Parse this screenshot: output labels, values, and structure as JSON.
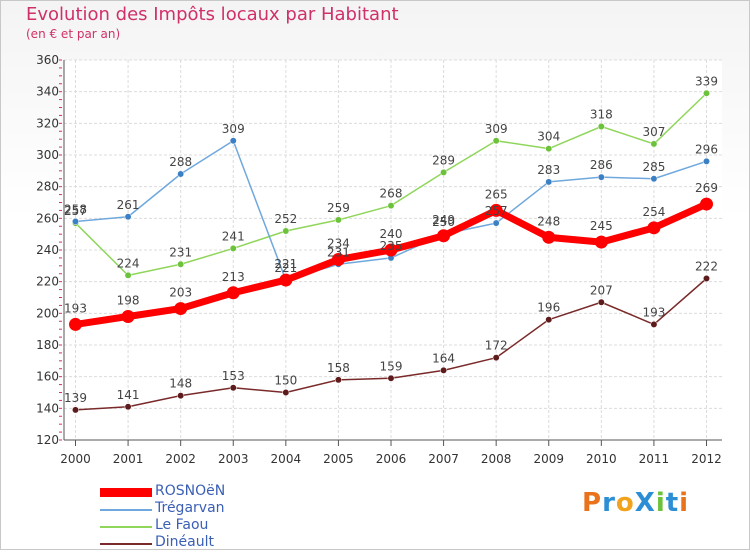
{
  "header": {
    "title": "Evolution des Impôts locaux par Habitant",
    "subtitle": "(en € et par an)"
  },
  "logo": {
    "text": "ProXiti"
  },
  "chart_data": {
    "type": "line",
    "title": "Evolution des Impôts locaux par Habitant",
    "subtitle": "(en € et par an)",
    "xlabel": "",
    "ylabel": "",
    "x": [
      2000,
      2001,
      2002,
      2003,
      2004,
      2005,
      2006,
      2007,
      2008,
      2009,
      2010,
      2011,
      2012
    ],
    "ylim": [
      120,
      360
    ],
    "yticks": [
      120,
      140,
      160,
      180,
      200,
      220,
      240,
      260,
      280,
      300,
      320,
      340,
      360
    ],
    "grid": true,
    "legend_position": "bottom-left",
    "series": [
      {
        "name": "ROSNOëN",
        "color": "#ff0000",
        "marker": "#ff0000",
        "width": 7,
        "values": [
          193,
          198,
          203,
          213,
          221,
          234,
          240,
          249,
          265,
          248,
          245,
          254,
          269
        ]
      },
      {
        "name": "Trégarvan",
        "color": "#6fa8dc",
        "marker": "#3b7fc4",
        "width": 1.5,
        "values": [
          258,
          261,
          288,
          309,
          221,
          231,
          235,
          250,
          257,
          283,
          286,
          285,
          296
        ]
      },
      {
        "name": "Le Faou",
        "color": "#8fd65a",
        "marker": "#6cc23a",
        "width": 1.5,
        "values": [
          257,
          224,
          231,
          241,
          252,
          259,
          268,
          289,
          309,
          304,
          318,
          307,
          339
        ]
      },
      {
        "name": "Dinéault",
        "color": "#7a2a2a",
        "marker": "#5e1b1b",
        "width": 1.5,
        "values": [
          139,
          141,
          148,
          153,
          150,
          158,
          159,
          164,
          172,
          196,
          207,
          193,
          222
        ]
      }
    ]
  }
}
